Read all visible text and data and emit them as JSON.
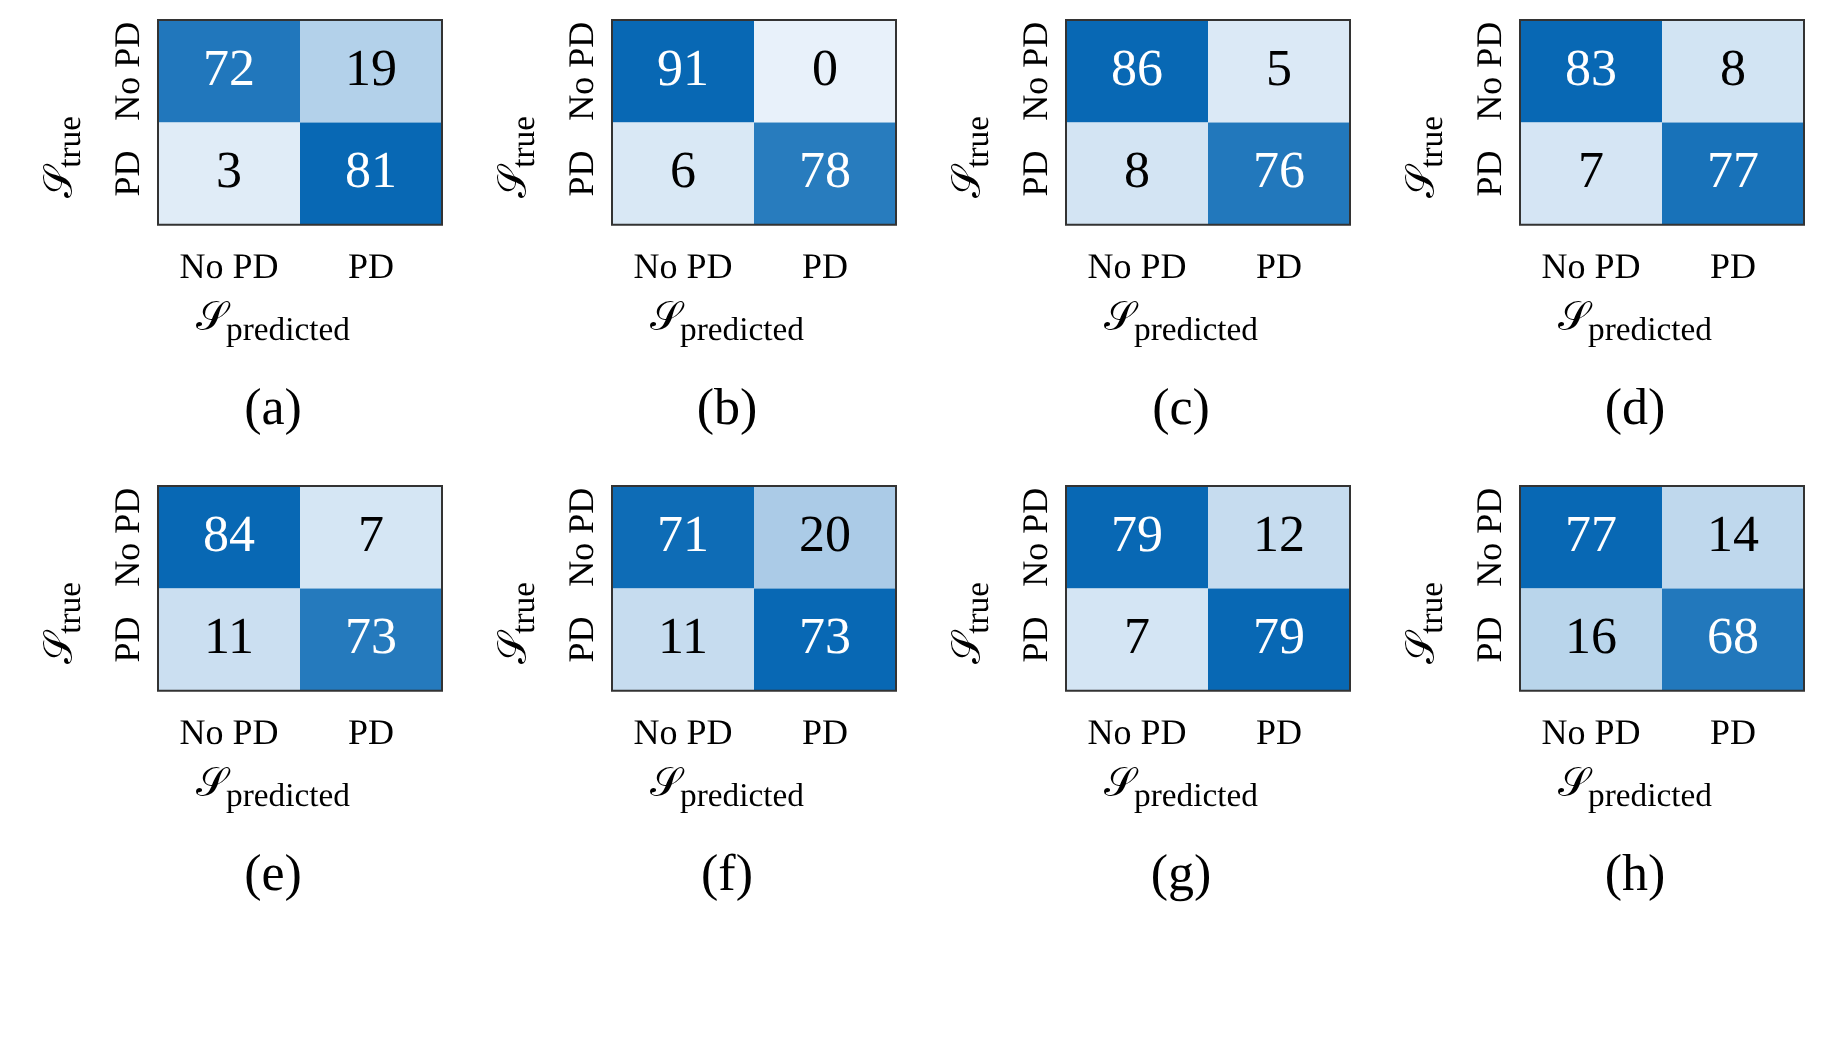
{
  "chart_data": [
    {
      "type": "heatmap",
      "title": "(a)",
      "xlabel": "𝒮$_{predicted}$",
      "ylabel": "𝒮$_{true}$",
      "categories": [
        "No PD",
        "PD"
      ],
      "y_categories": [
        "No PD",
        "PD"
      ],
      "cells": [
        [
          72,
          19
        ],
        [
          3,
          81
        ]
      ],
      "data_labels": true
    },
    {
      "type": "heatmap",
      "title": "(b)",
      "xlabel": "𝒮$_{predicted}$",
      "ylabel": "𝒮$_{true}$",
      "categories": [
        "No PD",
        "PD"
      ],
      "y_categories": [
        "No PD",
        "PD"
      ],
      "cells": [
        [
          91,
          0
        ],
        [
          6,
          78
        ]
      ],
      "data_labels": true
    },
    {
      "type": "heatmap",
      "title": "(c)",
      "xlabel": "𝒮$_{predicted}$",
      "ylabel": "𝒮$_{true}$",
      "categories": [
        "No PD",
        "PD"
      ],
      "y_categories": [
        "No PD",
        "PD"
      ],
      "cells": [
        [
          86,
          5
        ],
        [
          8,
          76
        ]
      ],
      "data_labels": true
    },
    {
      "type": "heatmap",
      "title": "(d)",
      "xlabel": "𝒮$_{predicted}$",
      "ylabel": "𝒮$_{true}$",
      "categories": [
        "No PD",
        "PD"
      ],
      "y_categories": [
        "No PD",
        "PD"
      ],
      "cells": [
        [
          83,
          8
        ],
        [
          7,
          77
        ]
      ],
      "data_labels": true
    },
    {
      "type": "heatmap",
      "title": "(e)",
      "xlabel": "𝒮$_{predicted}$",
      "ylabel": "𝒮$_{true}$",
      "categories": [
        "No PD",
        "PD"
      ],
      "y_categories": [
        "No PD",
        "PD"
      ],
      "cells": [
        [
          84,
          7
        ],
        [
          11,
          73
        ]
      ],
      "data_labels": true
    },
    {
      "type": "heatmap",
      "title": "(f)",
      "xlabel": "𝒮$_{predicted}$",
      "ylabel": "𝒮$_{true}$",
      "categories": [
        "No PD",
        "PD"
      ],
      "y_categories": [
        "No PD",
        "PD"
      ],
      "cells": [
        [
          71,
          20
        ],
        [
          11,
          73
        ]
      ],
      "data_labels": true
    },
    {
      "type": "heatmap",
      "title": "(g)",
      "xlabel": "𝒮$_{predicted}$",
      "ylabel": "𝒮$_{true}$",
      "categories": [
        "No PD",
        "PD"
      ],
      "y_categories": [
        "No PD",
        "PD"
      ],
      "cells": [
        [
          79,
          12
        ],
        [
          7,
          79
        ]
      ],
      "data_labels": true
    },
    {
      "type": "heatmap",
      "title": "(h)",
      "xlabel": "𝒮$_{predicted}$",
      "ylabel": "𝒮$_{true}$",
      "categories": [
        "No PD",
        "PD"
      ],
      "y_categories": [
        "No PD",
        "PD"
      ],
      "cells": [
        [
          77,
          14
        ],
        [
          16,
          68
        ]
      ],
      "data_labels": true
    }
  ]
}
